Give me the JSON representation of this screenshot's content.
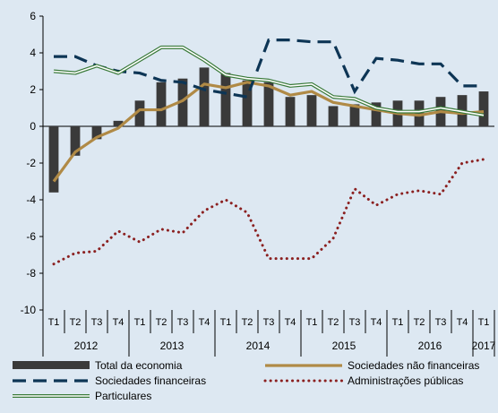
{
  "chart_data": {
    "type": "bar",
    "ylim": [
      -10,
      6
    ],
    "yticks": [
      6,
      4,
      2,
      0,
      -2,
      -4,
      -6,
      -8,
      -10
    ],
    "quarters": [
      "T1",
      "T2",
      "T3",
      "T4",
      "T1",
      "T2",
      "T3",
      "T4",
      "T1",
      "T2",
      "T3",
      "T4",
      "T1",
      "T2",
      "T3",
      "T4",
      "T1",
      "T2",
      "T3",
      "T4",
      "T1"
    ],
    "years": [
      {
        "label": "2012",
        "start": 0,
        "end": 3
      },
      {
        "label": "2013",
        "start": 4,
        "end": 7
      },
      {
        "label": "2014",
        "start": 8,
        "end": 11
      },
      {
        "label": "2015",
        "start": 12,
        "end": 15
      },
      {
        "label": "2016",
        "start": 16,
        "end": 19
      },
      {
        "label": "2017",
        "start": 20,
        "end": 20
      }
    ],
    "grid": false,
    "legend_position": "bottom",
    "series": [
      {
        "name": "Total da economia",
        "kind": "bar",
        "color": "#3a3a3a",
        "values": [
          -3.6,
          -1.6,
          -0.7,
          0.3,
          1.4,
          2.4,
          2.6,
          3.2,
          2.9,
          2.5,
          2.4,
          1.6,
          1.7,
          1.1,
          1.2,
          1.3,
          1.4,
          1.4,
          1.6,
          1.7,
          1.9
        ]
      },
      {
        "name": "Sociedades não financeiras",
        "kind": "line",
        "style": "solid-thick",
        "color": "#b08a46",
        "values": [
          -3.0,
          -1.4,
          -0.6,
          -0.1,
          0.9,
          0.9,
          1.4,
          2.3,
          2.1,
          2.4,
          2.2,
          1.7,
          1.9,
          1.3,
          1.1,
          0.9,
          0.7,
          0.6,
          0.8,
          0.7,
          0.8
        ]
      },
      {
        "name": "Sociedades financeiras",
        "kind": "line",
        "style": "dashed",
        "color": "#0d3555",
        "values": [
          3.8,
          3.8,
          3.3,
          3.0,
          2.9,
          2.5,
          2.4,
          2.0,
          1.8,
          1.6,
          4.7,
          4.7,
          4.6,
          4.6,
          1.9,
          3.7,
          3.6,
          3.4,
          3.4,
          2.2,
          2.2
        ]
      },
      {
        "name": "Administrações públicas",
        "kind": "line",
        "style": "dotted",
        "color": "#8b2020",
        "values": [
          -7.5,
          -6.9,
          -6.8,
          -5.7,
          -6.3,
          -5.6,
          -5.8,
          -4.6,
          -4.0,
          -4.7,
          -7.2,
          -7.2,
          -7.2,
          -6.1,
          -3.4,
          -4.3,
          -3.7,
          -3.5,
          -3.7,
          -2.0,
          -1.8
        ]
      },
      {
        "name": "Particulares",
        "kind": "line",
        "style": "double",
        "color": "#3a7a3a",
        "values": [
          3.0,
          2.9,
          3.3,
          2.9,
          3.6,
          4.3,
          4.3,
          3.6,
          2.8,
          2.6,
          2.5,
          2.2,
          2.3,
          1.6,
          1.5,
          1.0,
          0.8,
          0.8,
          1.0,
          0.8,
          0.6
        ]
      }
    ]
  }
}
